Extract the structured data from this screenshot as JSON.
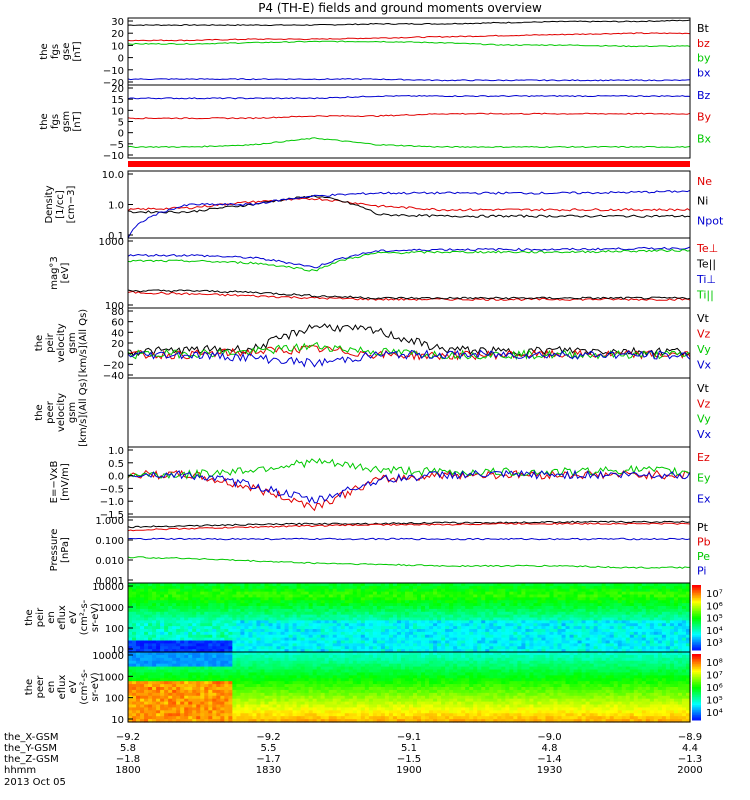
{
  "title": "P4 (TH-E) fields and ground moments overview",
  "colors": {
    "black": "#000000",
    "red": "#e00000",
    "green": "#00c800",
    "blue": "#0000d0"
  },
  "chart_data": [
    {
      "type": "line",
      "panel": "fgs_gse",
      "ylabel": [
        "the",
        "fgs",
        "gse",
        "[nT]"
      ],
      "yticks": [
        "30",
        "20",
        "10",
        "0",
        "−10",
        "−20"
      ],
      "ylim": [
        -25,
        32
      ],
      "series": [
        {
          "name": "Bt",
          "color": "black",
          "values": [
            26,
            26,
            26,
            26,
            27,
            27,
            28,
            29,
            29,
            30
          ]
        },
        {
          "name": "bz",
          "color": "red",
          "values": [
            13,
            13,
            14,
            14,
            15,
            16,
            17,
            18,
            19,
            19
          ]
        },
        {
          "name": "by",
          "color": "green",
          "values": [
            10,
            10,
            11,
            12,
            12,
            11,
            9,
            9,
            8,
            8
          ]
        },
        {
          "name": "bx",
          "color": "blue",
          "values": [
            -20,
            -20,
            -20,
            -20,
            -20,
            -21,
            -21,
            -21,
            -21,
            -21
          ]
        }
      ]
    },
    {
      "type": "line",
      "panel": "fgs_gsm",
      "ylabel": [
        "the",
        "fgs",
        "gsm",
        "[nT]"
      ],
      "yticks": [
        "20",
        "15",
        "10",
        "5",
        "0",
        "−5",
        "−10"
      ],
      "ylim": [
        -13,
        20
      ],
      "series": [
        {
          "name": "Bz",
          "color": "blue",
          "values": [
            14,
            14,
            14,
            14,
            15,
            15,
            15,
            15,
            15,
            15
          ]
        },
        {
          "name": "By",
          "color": "red",
          "values": [
            5,
            5,
            5,
            6,
            6,
            7,
            7,
            7,
            7,
            7
          ]
        },
        {
          "name": "Bx",
          "color": "green",
          "values": [
            -8,
            -8,
            -7,
            -4,
            -7,
            -8,
            -8,
            -8,
            -8,
            -8
          ]
        }
      ]
    },
    {
      "type": "line",
      "panel": "density",
      "scale": "log",
      "ylabel": [
        "Density",
        "[1/cc]",
        "[cm−3]"
      ],
      "yticks": [
        "10.0",
        "1.0",
        "0.1"
      ],
      "ylim": [
        0.1,
        10
      ],
      "series": [
        {
          "name": "Ne",
          "color": "red",
          "values": [
            0.7,
            0.8,
            1.2,
            1.5,
            0.9,
            0.7,
            0.7,
            0.7,
            0.7,
            0.7
          ]
        },
        {
          "name": "Ni",
          "color": "black",
          "values": [
            0.6,
            0.6,
            1.0,
            1.8,
            0.5,
            0.45,
            0.45,
            0.45,
            0.45,
            0.45
          ]
        },
        {
          "name": "Npot",
          "color": "blue",
          "values": [
            0.1,
            1.0,
            1.0,
            1.8,
            2.2,
            2.2,
            2.2,
            2.2,
            2.3,
            2.5
          ]
        }
      ]
    },
    {
      "type": "line",
      "panel": "temperature",
      "scale": "log",
      "ylabel": [
        "mag°3",
        "[eV]"
      ],
      "yticks": [
        "1000",
        "100"
      ],
      "ylim": [
        30,
        4000
      ],
      "series": [
        {
          "name": "Te⊥",
          "color": "red",
          "values": [
            90,
            80,
            70,
            60,
            55,
            55,
            55,
            55,
            55,
            55
          ]
        },
        {
          "name": "Te||",
          "color": "black",
          "values": [
            100,
            100,
            90,
            70,
            60,
            60,
            60,
            60,
            60,
            60
          ]
        },
        {
          "name": "Ti⊥",
          "color": "blue",
          "values": [
            1200,
            1200,
            1000,
            500,
            1600,
            1800,
            1800,
            1800,
            1900,
            2000
          ]
        },
        {
          "name": "Ti||",
          "color": "green",
          "values": [
            800,
            800,
            700,
            400,
            1400,
            1500,
            1500,
            1500,
            1600,
            1700
          ]
        }
      ]
    },
    {
      "type": "line",
      "panel": "peir_velocity",
      "ylabel": [
        "the",
        "peir",
        "velocity",
        "gsm",
        "[km/s](All Qs)"
      ],
      "yticks": [
        "80",
        "60",
        "40",
        "20",
        "0",
        "−20",
        "−40"
      ],
      "ylim": [
        -40,
        80
      ],
      "series": [
        {
          "name": "Vt",
          "color": "black",
          "values": [
            5,
            8,
            10,
            50,
            40,
            10,
            5,
            8,
            6,
            6
          ]
        },
        {
          "name": "Vz",
          "color": "red",
          "values": [
            0,
            0,
            5,
            10,
            0,
            -2,
            0,
            0,
            0,
            0
          ]
        },
        {
          "name": "Vy",
          "color": "green",
          "values": [
            0,
            2,
            5,
            15,
            5,
            0,
            0,
            0,
            0,
            0
          ]
        },
        {
          "name": "Vx",
          "color": "blue",
          "values": [
            0,
            0,
            -5,
            -15,
            0,
            0,
            0,
            0,
            0,
            -2
          ]
        }
      ]
    },
    {
      "type": "line",
      "panel": "peer_velocity",
      "ylabel": [
        "the",
        "peer",
        "velocity",
        "gsm",
        "[km/s](All Qs)"
      ],
      "yticks": [],
      "series": [
        {
          "name": "Vt",
          "color": "black",
          "values": []
        },
        {
          "name": "Vz",
          "color": "red",
          "values": []
        },
        {
          "name": "Vy",
          "color": "green",
          "values": []
        },
        {
          "name": "Vx",
          "color": "blue",
          "values": []
        }
      ]
    },
    {
      "type": "line",
      "panel": "efield",
      "ylabel": [
        "E=−VxB",
        "[mV/m]"
      ],
      "yticks": [
        "1.0",
        "0.5",
        "0.0",
        "−0.5",
        "−1.0",
        "−1.5"
      ],
      "ylim": [
        -1.6,
        1.05
      ],
      "series": [
        {
          "name": "Ez",
          "color": "red",
          "values": [
            0,
            0,
            -0.5,
            -1.2,
            -0.2,
            0,
            0,
            0,
            0,
            0
          ]
        },
        {
          "name": "Ey",
          "color": "green",
          "values": [
            0,
            0,
            0.2,
            0.5,
            0.2,
            0.1,
            0.1,
            0.1,
            0.2,
            0.1
          ]
        },
        {
          "name": "Ex",
          "color": "blue",
          "values": [
            0,
            0,
            -0.4,
            -1.0,
            -0.2,
            0,
            0,
            0,
            0,
            0
          ]
        }
      ]
    },
    {
      "type": "line",
      "panel": "pressure",
      "scale": "log",
      "ylabel": [
        "Pressure",
        "[nPa]"
      ],
      "yticks": [
        "1.000",
        "0.100",
        "0.010",
        "0.001"
      ],
      "ylim": [
        0.001,
        1
      ],
      "series": [
        {
          "name": "Pt",
          "color": "black",
          "values": [
            0.35,
            0.4,
            0.45,
            0.5,
            0.5,
            0.55,
            0.55,
            0.6,
            0.6,
            0.6
          ]
        },
        {
          "name": "Pb",
          "color": "red",
          "values": [
            0.25,
            0.3,
            0.35,
            0.4,
            0.45,
            0.45,
            0.5,
            0.5,
            0.5,
            0.5
          ]
        },
        {
          "name": "Pe",
          "color": "green",
          "values": [
            0.015,
            0.013,
            0.01,
            0.008,
            0.007,
            0.006,
            0.006,
            0.006,
            0.005,
            0.005
          ]
        },
        {
          "name": "Pi",
          "color": "blue",
          "values": [
            0.1,
            0.1,
            0.1,
            0.1,
            0.1,
            0.1,
            0.1,
            0.1,
            0.1,
            0.1
          ]
        }
      ]
    },
    {
      "type": "heatmap",
      "panel": "peir_eflux",
      "ylabel": [
        "the",
        "peir",
        "en",
        "eflux",
        "eV",
        "(cm²-s-",
        "sr-eV)"
      ],
      "yticks": [
        "10000",
        "1000",
        "100",
        "10"
      ],
      "colorbar_ticks": [
        "10⁷",
        "10⁶",
        "10⁵",
        "10⁴",
        "10³"
      ]
    },
    {
      "type": "heatmap",
      "panel": "peer_eflux",
      "ylabel": [
        "the",
        "peer",
        "en",
        "eflux",
        "eV",
        "(cm²-s-",
        "sr-eV)"
      ],
      "yticks": [
        "10000",
        "1000",
        "100",
        "10"
      ],
      "colorbar_ticks": [
        "10⁸",
        "10⁷",
        "10⁶",
        "10⁵",
        "10⁴"
      ]
    }
  ],
  "xaxis": {
    "rows": [
      {
        "label": "the_X-GSM",
        "values": [
          "−9.2",
          "−9.2",
          "−9.1",
          "−9.0",
          "−8.9"
        ]
      },
      {
        "label": "the_Y-GSM",
        "values": [
          "5.8",
          "5.5",
          "5.1",
          "4.8",
          "4.4"
        ]
      },
      {
        "label": "the_Z-GSM",
        "values": [
          "−1.8",
          "−1.7",
          "−1.5",
          "−1.4",
          "−1.3"
        ]
      },
      {
        "label": "hhmm",
        "values": [
          "1800",
          "1830",
          "1900",
          "1930",
          "2000"
        ]
      }
    ],
    "date": "2013 Oct 05"
  }
}
